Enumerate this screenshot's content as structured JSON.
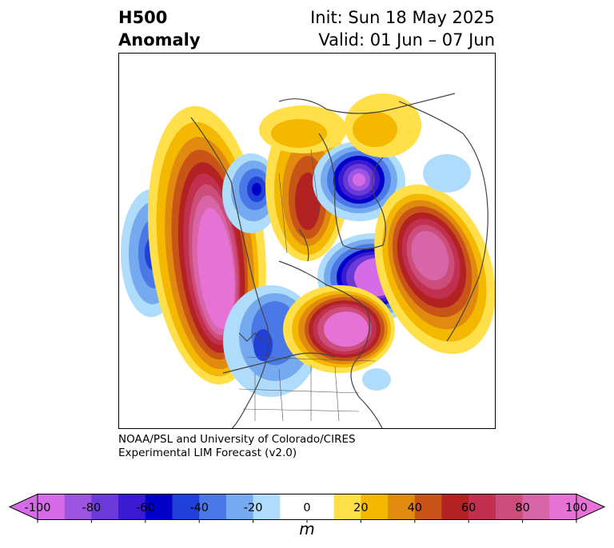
{
  "header": {
    "title_line1": "H500",
    "title_line2": "Anomaly",
    "init_text": "Init: Sun 18 May 2025",
    "valid_text": "Valid: 01 Jun – 07 Jun"
  },
  "credit": {
    "line1": "NOAA/PSL and University of Colorado/CIRES",
    "line2": "Experimental LIM Forecast (v2.0)"
  },
  "colorbar": {
    "ticks": [
      "-100",
      "-80",
      "-60",
      "-40",
      "-20",
      "0",
      "20",
      "40",
      "60",
      "80",
      "100"
    ],
    "unit": "m",
    "colors": [
      "#d66be8",
      "#9b55e0",
      "#6a3ad8",
      "#3a1ad0",
      "#0000c8",
      "#2040d8",
      "#4a78e6",
      "#76aaf0",
      "#aedcfa",
      "#ffffff",
      "#ffffff",
      "#ffe04a",
      "#f4b800",
      "#e08a10",
      "#c85418",
      "#b22222",
      "#c23050",
      "#cc4d7a",
      "#d865a8",
      "#e672d6"
    ]
  },
  "map": {
    "features": [
      {
        "name": "warm-ridge-west-coast",
        "sign": "positive"
      },
      {
        "name": "cold-low-pacific",
        "sign": "negative"
      },
      {
        "name": "cold-low-hudson-bay",
        "sign": "negative"
      },
      {
        "name": "cold-low-baffin",
        "sign": "negative"
      },
      {
        "name": "warm-ridge-greenland",
        "sign": "positive"
      },
      {
        "name": "warm-ridge-great-lakes",
        "sign": "positive"
      },
      {
        "name": "warm-ridge-central-canada",
        "sign": "positive"
      }
    ]
  }
}
